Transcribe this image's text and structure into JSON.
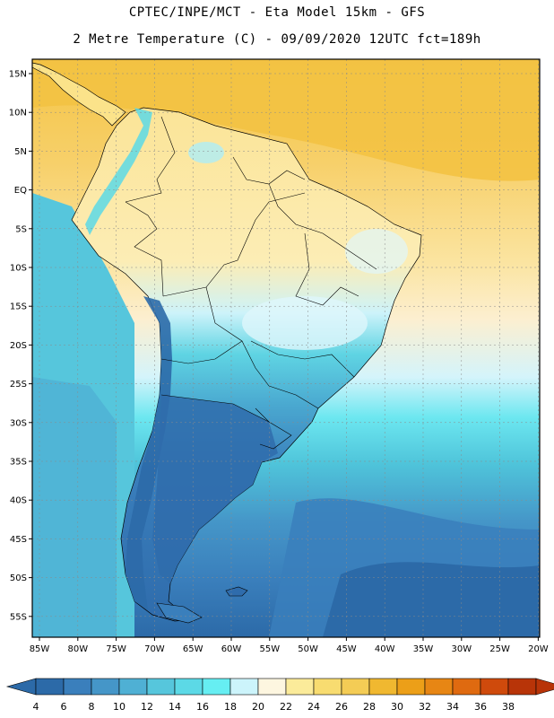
{
  "header": {
    "line1": "CPTEC/INPE/MCT -  Eta Model 15km - GFS",
    "line2": "2 Metre Temperature (C) - 09/09/2020 12UTC fct=189h"
  },
  "axes": {
    "lat_labels": [
      "15N",
      "10N",
      "5N",
      "EQ",
      "5S",
      "10S",
      "15S",
      "20S",
      "25S",
      "30S",
      "35S",
      "40S",
      "45S",
      "50S",
      "55S"
    ],
    "lon_labels": [
      "85W",
      "80W",
      "75W",
      "70W",
      "65W",
      "60W",
      "55W",
      "50W",
      "45W",
      "40W",
      "35W",
      "30W",
      "25W",
      "20W"
    ]
  },
  "colorbar": {
    "labels": [
      "4",
      "6",
      "8",
      "10",
      "12",
      "14",
      "16",
      "18",
      "20",
      "22",
      "24",
      "26",
      "28",
      "30",
      "32",
      "34",
      "36",
      "38"
    ],
    "colors": [
      "#2c6aa8",
      "#3a7fbc",
      "#4596c8",
      "#4fb0d4",
      "#56c6dc",
      "#5cd9e6",
      "#66eef2",
      "#ccf4fb",
      "#fdf6e0",
      "#fbeb9a",
      "#f8dc70",
      "#f4cc55",
      "#f0b830",
      "#ec9f18",
      "#e78614",
      "#df6a10",
      "#cf4a0c",
      "#b83408"
    ]
  },
  "colors": {
    "ocean_north": "#f2c448",
    "ocean_south": "#2c6aa8",
    "land_warm": "#fbe38a",
    "land_cool": "#3a7fbc",
    "graticule": "#8a8a8a"
  }
}
